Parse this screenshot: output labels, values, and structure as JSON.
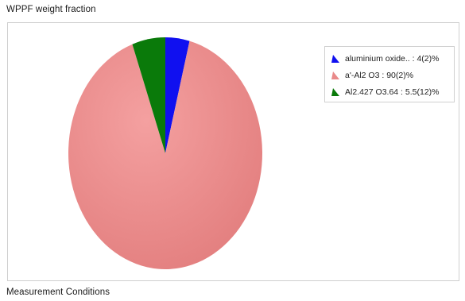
{
  "sections": {
    "top_title": "WPPF weight fraction",
    "bottom_title": "Measurement Conditions"
  },
  "chart_data": {
    "type": "pie",
    "title": "",
    "legend_position": "top-right",
    "slices": [
      {
        "label": "aluminium oxide.. : 4(2)%",
        "value": 4,
        "color": "#1010f0"
      },
      {
        "label": "a'-Al2 O3 : 90(2)%",
        "value": 90,
        "color": "#e98a8a"
      },
      {
        "label": "Al2.427 O3.64 : 5.5(12)%",
        "value": 5.5,
        "color": "#0a7a0a"
      }
    ]
  },
  "colors": {
    "panel_border": "#cfcfcf",
    "legend_border": "#d0d0d0"
  },
  "legend_icons": [
    "legend-marker-triangle",
    "legend-marker-triangle",
    "legend-marker-triangle"
  ]
}
